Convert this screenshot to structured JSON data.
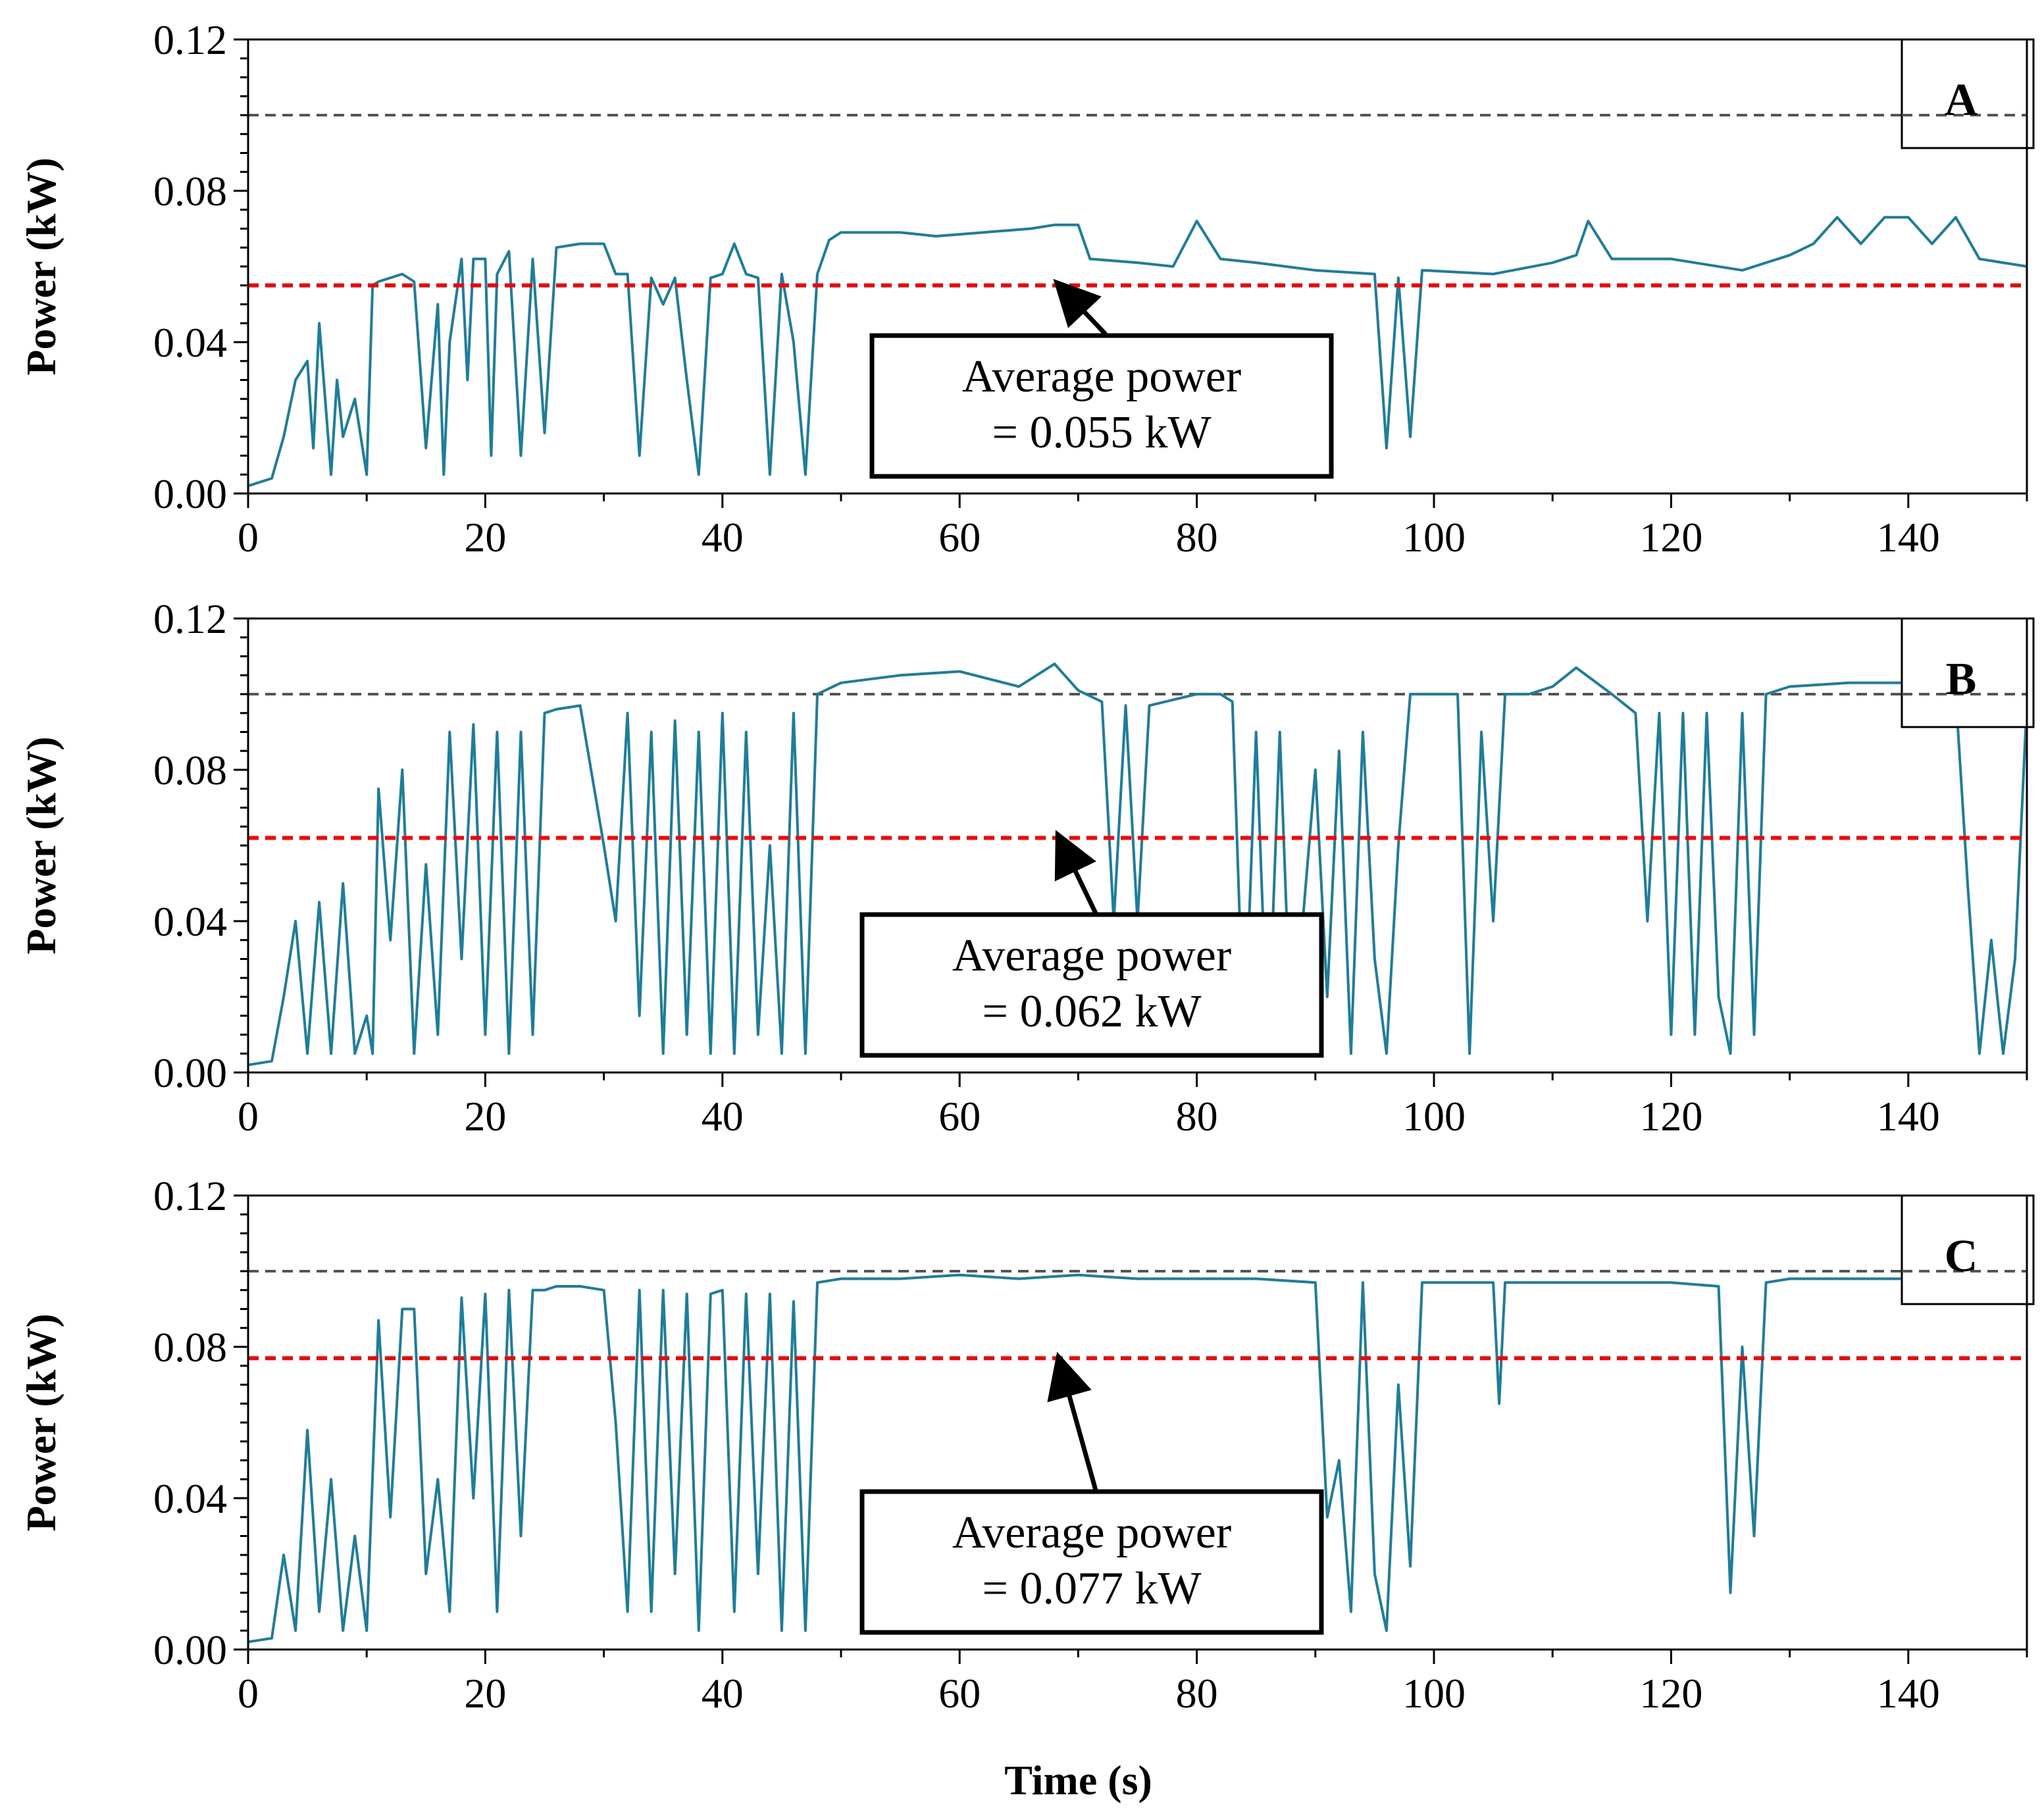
{
  "chart_data": [
    {
      "type": "line",
      "panel": "A",
      "xlabel": "",
      "ylabel": "Power (kW)",
      "xlim": [
        0,
        150
      ],
      "ylim": [
        0,
        0.12
      ],
      "x_ticks": [
        "0",
        "20",
        "40",
        "60",
        "80",
        "100",
        "120",
        "140"
      ],
      "y_ticks": [
        "0.00",
        "0.04",
        "0.08",
        "0.12"
      ],
      "reference_line": 0.1,
      "average_power": 0.055,
      "annotation": [
        "Average power",
        "= 0.055 kW"
      ],
      "series": [
        {
          "name": "Power",
          "x": [
            0,
            2,
            3,
            4,
            5,
            5.5,
            6,
            7,
            7.5,
            8,
            9,
            10,
            10.5,
            11,
            13,
            14,
            15,
            16,
            16.5,
            17,
            18,
            18.5,
            19,
            20,
            20.5,
            21,
            22,
            23,
            24,
            25,
            26,
            28,
            30,
            31,
            32,
            33,
            34,
            35,
            36,
            37,
            38,
            39,
            40,
            41,
            42,
            43,
            44,
            45,
            46,
            47,
            48,
            49,
            50,
            55,
            58,
            62,
            66,
            68,
            70,
            71,
            75,
            78,
            80,
            82,
            85,
            90,
            95,
            96,
            97,
            98,
            99,
            105,
            110,
            112,
            113,
            115,
            120,
            126,
            130,
            132,
            134,
            136,
            138,
            140,
            142,
            144,
            146,
            150
          ],
          "values": [
            0.002,
            0.004,
            0.015,
            0.03,
            0.035,
            0.012,
            0.045,
            0.005,
            0.03,
            0.015,
            0.025,
            0.005,
            0.055,
            0.056,
            0.058,
            0.056,
            0.012,
            0.05,
            0.005,
            0.04,
            0.062,
            0.03,
            0.062,
            0.062,
            0.01,
            0.058,
            0.064,
            0.01,
            0.062,
            0.016,
            0.065,
            0.066,
            0.066,
            0.058,
            0.058,
            0.01,
            0.057,
            0.05,
            0.057,
            0.03,
            0.005,
            0.057,
            0.058,
            0.066,
            0.058,
            0.057,
            0.005,
            0.058,
            0.04,
            0.005,
            0.058,
            0.067,
            0.069,
            0.069,
            0.068,
            0.069,
            0.07,
            0.071,
            0.071,
            0.062,
            0.061,
            0.06,
            0.072,
            0.062,
            0.061,
            0.059,
            0.058,
            0.012,
            0.057,
            0.015,
            0.059,
            0.058,
            0.061,
            0.063,
            0.072,
            0.062,
            0.062,
            0.059,
            0.063,
            0.066,
            0.073,
            0.066,
            0.073,
            0.073,
            0.066,
            0.073,
            0.062,
            0.06
          ]
        }
      ]
    },
    {
      "type": "line",
      "panel": "B",
      "xlabel": "",
      "ylabel": "Power (kW)",
      "xlim": [
        0,
        150
      ],
      "ylim": [
        0,
        0.12
      ],
      "x_ticks": [
        "0",
        "20",
        "40",
        "60",
        "80",
        "100",
        "120",
        "140"
      ],
      "y_ticks": [
        "0.00",
        "0.04",
        "0.08",
        "0.12"
      ],
      "reference_line": 0.1,
      "average_power": 0.062,
      "annotation": [
        "Average power",
        "= 0.062 kW"
      ],
      "series": [
        {
          "name": "Power",
          "x": [
            0,
            2,
            3,
            4,
            5,
            6,
            7,
            8,
            9,
            10,
            10.5,
            11,
            12,
            13,
            14,
            15,
            16,
            17,
            18,
            19,
            20,
            21,
            22,
            23,
            24,
            25,
            26,
            28,
            30,
            31,
            32,
            33,
            34,
            35,
            36,
            37,
            38,
            39,
            40,
            41,
            42,
            43,
            44,
            45,
            46,
            47,
            48,
            50,
            55,
            60,
            65,
            68,
            70,
            72,
            73,
            74,
            75,
            76,
            80,
            82,
            83,
            84,
            85,
            86,
            87,
            88,
            90,
            91,
            92,
            93,
            94,
            95,
            96,
            97,
            98,
            100,
            102,
            103,
            104,
            105,
            106,
            108,
            110,
            112,
            115,
            117,
            118,
            119,
            120,
            121,
            122,
            123,
            124,
            125,
            126,
            127,
            128,
            130,
            135,
            140,
            144,
            145,
            146,
            147,
            148,
            149,
            150
          ],
          "values": [
            0.002,
            0.003,
            0.02,
            0.04,
            0.005,
            0.045,
            0.005,
            0.05,
            0.005,
            0.015,
            0.005,
            0.075,
            0.035,
            0.08,
            0.005,
            0.055,
            0.01,
            0.09,
            0.03,
            0.092,
            0.01,
            0.09,
            0.005,
            0.09,
            0.01,
            0.095,
            0.096,
            0.097,
            0.06,
            0.04,
            0.095,
            0.015,
            0.09,
            0.005,
            0.093,
            0.01,
            0.09,
            0.005,
            0.095,
            0.005,
            0.09,
            0.01,
            0.06,
            0.005,
            0.095,
            0.005,
            0.1,
            0.103,
            0.105,
            0.106,
            0.102,
            0.108,
            0.101,
            0.098,
            0.04,
            0.097,
            0.04,
            0.097,
            0.1,
            0.1,
            0.098,
            0.005,
            0.09,
            0.005,
            0.09,
            0.005,
            0.08,
            0.02,
            0.085,
            0.005,
            0.09,
            0.03,
            0.005,
            0.06,
            0.1,
            0.1,
            0.1,
            0.005,
            0.09,
            0.04,
            0.1,
            0.1,
            0.102,
            0.107,
            0.1,
            0.095,
            0.04,
            0.095,
            0.01,
            0.095,
            0.01,
            0.095,
            0.02,
            0.005,
            0.095,
            0.01,
            0.1,
            0.102,
            0.103,
            0.103,
            0.1,
            0.05,
            0.005,
            0.035,
            0.005,
            0.03,
            0.098
          ]
        }
      ]
    },
    {
      "type": "line",
      "panel": "C",
      "xlabel": "Time (s)",
      "ylabel": "Power (kW)",
      "xlim": [
        0,
        150
      ],
      "ylim": [
        0,
        0.12
      ],
      "x_ticks": [
        "0",
        "20",
        "40",
        "60",
        "80",
        "100",
        "120",
        "140"
      ],
      "y_ticks": [
        "0.00",
        "0.04",
        "0.08",
        "0.12"
      ],
      "reference_line": 0.1,
      "average_power": 0.077,
      "annotation": [
        "Average power",
        "= 0.077 kW"
      ],
      "series": [
        {
          "name": "Power",
          "x": [
            0,
            2,
            3,
            4,
            5,
            6,
            7,
            8,
            9,
            10,
            11,
            12,
            13,
            14,
            15,
            16,
            17,
            18,
            19,
            20,
            21,
            22,
            23,
            24,
            25,
            26,
            28,
            30,
            31,
            32,
            33,
            34,
            35,
            36,
            37,
            38,
            39,
            40,
            41,
            42,
            43,
            44,
            45,
            46,
            47,
            48,
            50,
            55,
            60,
            65,
            70,
            75,
            80,
            85,
            90,
            91,
            92,
            93,
            94,
            95,
            96,
            97,
            98,
            99,
            102,
            105,
            105.5,
            106,
            110,
            120,
            124,
            125,
            126,
            127,
            128,
            130,
            140,
            150
          ],
          "values": [
            0.002,
            0.003,
            0.025,
            0.005,
            0.058,
            0.01,
            0.045,
            0.005,
            0.03,
            0.005,
            0.087,
            0.035,
            0.09,
            0.09,
            0.02,
            0.045,
            0.01,
            0.093,
            0.04,
            0.094,
            0.01,
            0.095,
            0.03,
            0.095,
            0.095,
            0.096,
            0.096,
            0.095,
            0.06,
            0.01,
            0.095,
            0.01,
            0.095,
            0.02,
            0.094,
            0.005,
            0.094,
            0.095,
            0.01,
            0.094,
            0.02,
            0.094,
            0.005,
            0.092,
            0.005,
            0.097,
            0.098,
            0.098,
            0.099,
            0.098,
            0.099,
            0.098,
            0.098,
            0.098,
            0.097,
            0.035,
            0.05,
            0.01,
            0.097,
            0.02,
            0.005,
            0.07,
            0.022,
            0.097,
            0.097,
            0.097,
            0.065,
            0.097,
            0.097,
            0.097,
            0.096,
            0.015,
            0.08,
            0.03,
            0.097,
            0.098,
            0.098,
            0.097
          ]
        }
      ]
    }
  ]
}
